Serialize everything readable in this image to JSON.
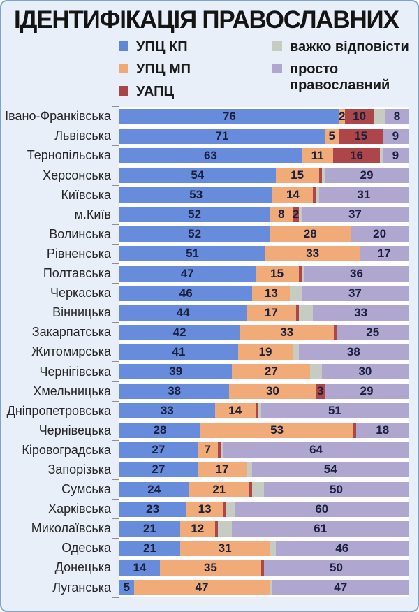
{
  "title": "ІДЕНТИФІКАЦІЯ ПРАВОСЛАВНИХ",
  "legend": [
    {
      "key": "upc-kp",
      "label": "УПЦ КП",
      "color": "#5e88d6",
      "column": 1,
      "wrap": false
    },
    {
      "key": "upc-mp",
      "label": "УПЦ МП",
      "color": "#efa978",
      "column": 1,
      "wrap": false
    },
    {
      "key": "uapc",
      "label": "УАПЦ",
      "color": "#a84547",
      "column": 1,
      "wrap": false
    },
    {
      "key": "vazhko",
      "label": "важко відповісти",
      "color": "#c7ccc2",
      "column": 2,
      "wrap": false
    },
    {
      "key": "prosto",
      "label": "просто православний",
      "color": "#afa7d0",
      "column": 2,
      "wrap": true
    }
  ],
  "chart_data": {
    "type": "bar",
    "orientation": "horizontal",
    "stacked": true,
    "unit": "%",
    "x_range": [
      0,
      100
    ],
    "grid": false,
    "legend_position": "top",
    "categories": [
      "Івано-Франківська",
      "Львівська",
      "Тернопільська",
      "Херсонська",
      "Київська",
      "м.Київ",
      "Волинська",
      "Рівненська",
      "Полтавська",
      "Черкаська",
      "Вінницька",
      "Закарпатська",
      "Житомирська",
      "Чернігівська",
      "Хмельницька",
      "Дніпропетровська",
      "Чернівецька",
      "Кіровоградська",
      "Запорізька",
      "Сумська",
      "Харківська",
      "Миколаївська",
      "Одеська",
      "Донецька",
      "Луганська"
    ],
    "series": [
      {
        "key": "upc-kp",
        "name": "УПЦ КП",
        "color": "#688cdc",
        "values": [
          76,
          71,
          63,
          54,
          53,
          52,
          52,
          51,
          47,
          46,
          44,
          42,
          41,
          39,
          38,
          33,
          28,
          27,
          27,
          24,
          23,
          21,
          21,
          14,
          5
        ]
      },
      {
        "key": "upc-mp",
        "name": "УПЦ МП",
        "color": "#f0ab79",
        "values": [
          2,
          5,
          11,
          15,
          14,
          8,
          28,
          33,
          15,
          13,
          17,
          33,
          19,
          27,
          30,
          14,
          53,
          7,
          17,
          21,
          13,
          12,
          31,
          35,
          47
        ]
      },
      {
        "key": "uapc",
        "name": "УАПЦ",
        "color": "#ac4649",
        "values": [
          10,
          15,
          16,
          1,
          1,
          2,
          0,
          0,
          1,
          0,
          1,
          1,
          0,
          0,
          3,
          1,
          1,
          1,
          0,
          1,
          1,
          1,
          0,
          1,
          0
        ]
      },
      {
        "key": "vazhko",
        "name": "важко відповісти",
        "color": "#c7ccc2",
        "values": [
          4,
          0,
          1,
          1,
          1,
          1,
          0,
          0,
          1,
          4,
          5,
          0,
          2,
          4,
          0,
          1,
          0,
          1,
          2,
          4,
          3,
          5,
          2,
          0,
          1
        ]
      },
      {
        "key": "prosto",
        "name": "просто православний",
        "color": "#afa7d0",
        "values": [
          8,
          9,
          9,
          29,
          31,
          37,
          20,
          17,
          36,
          37,
          33,
          25,
          38,
          30,
          29,
          51,
          18,
          64,
          54,
          50,
          60,
          61,
          46,
          50,
          47
        ]
      }
    ],
    "label_rules": {
      "min_value_for_label": 2,
      "series_without_labels": [
        "важко відповісти"
      ]
    }
  }
}
